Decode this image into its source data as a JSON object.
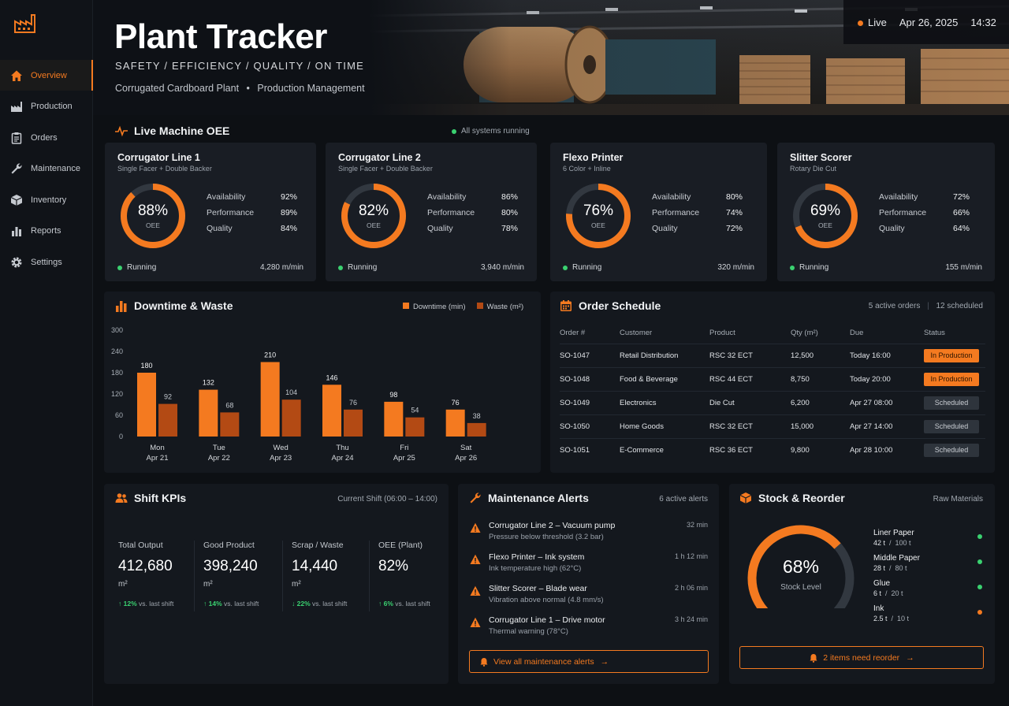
{
  "colors": {
    "accent": "#f47a20",
    "accent_dark": "#b34a14",
    "ok": "#3ad170",
    "warn": "#f47a20"
  },
  "sidebar": {
    "logo_icon": "factory-icon",
    "items": [
      {
        "label": "Overview",
        "icon": "home-icon",
        "active": true
      },
      {
        "label": "Production",
        "icon": "factory-icon"
      },
      {
        "label": "Orders",
        "icon": "clipboard-icon"
      },
      {
        "label": "Maintenance",
        "icon": "wrench-icon"
      },
      {
        "label": "Inventory",
        "icon": "box-icon"
      },
      {
        "label": "Reports",
        "icon": "bar-chart-icon"
      },
      {
        "label": "Settings",
        "icon": "gear-icon"
      }
    ]
  },
  "header": {
    "title": "Plant Tracker",
    "tags": "SAFETY / EFFICIENCY / QUALITY / ON TIME",
    "subtitle_a": "Corrugated Cardboard Plant",
    "subtitle_b": "Production Management",
    "status": "Live",
    "date": "Apr 26, 2025",
    "time": "14:32"
  },
  "oee": {
    "title": "Live Machine OEE",
    "status": "All systems running",
    "machines": [
      {
        "name": "Corrugator Line 1",
        "sub": "Single Facer + Double Backer",
        "oee": "88%",
        "oee_value": 88,
        "oee_label": "OEE",
        "availability": "92%",
        "performance": "89%",
        "quality": "84%",
        "state": "Running",
        "rate": "4,280 m/min"
      },
      {
        "name": "Corrugator Line 2",
        "sub": "Single Facer + Double Backer",
        "oee": "82%",
        "oee_value": 82,
        "oee_label": "OEE",
        "availability": "86%",
        "performance": "80%",
        "quality": "78%",
        "state": "Running",
        "rate": "3,940 m/min"
      },
      {
        "name": "Flexo Printer",
        "sub": "6 Color + Inline",
        "oee": "76%",
        "oee_value": 76,
        "oee_label": "OEE",
        "availability": "80%",
        "performance": "74%",
        "quality": "72%",
        "state": "Running",
        "rate": "320 m/min"
      },
      {
        "name": "Slitter Scorer",
        "sub": "Rotary Die Cut",
        "oee": "69%",
        "oee_value": 69,
        "oee_label": "OEE",
        "availability": "72%",
        "performance": "66%",
        "quality": "64%",
        "state": "Running",
        "rate": "155 m/min"
      }
    ],
    "labels": {
      "availability": "Availability",
      "performance": "Performance",
      "quality": "Quality"
    }
  },
  "downtime": {
    "title": "Downtime & Waste",
    "legend_a": "Downtime (min)",
    "legend_b": "Waste (m²)"
  },
  "chart_data": {
    "type": "bar",
    "title": "Downtime & Waste",
    "categories": [
      "Mon",
      "Tue",
      "Wed",
      "Thu",
      "Fri",
      "Sat"
    ],
    "dates": [
      "Apr 21",
      "Apr 22",
      "Apr 23",
      "Apr 24",
      "Apr 25",
      "Apr 26"
    ],
    "series": [
      {
        "name": "Downtime (min)",
        "values": [
          180,
          132,
          210,
          146,
          98,
          76
        ]
      },
      {
        "name": "Waste (m²)",
        "values": [
          92,
          68,
          104,
          76,
          54,
          38
        ]
      }
    ],
    "yticks": [
      0,
      60,
      120,
      180,
      240,
      300
    ],
    "ylim": [
      0,
      300
    ],
    "xlabel": "",
    "ylabel": "",
    "legend": "top-right",
    "grid": false
  },
  "orders": {
    "title": "Order Schedule",
    "active": "5 active orders",
    "scheduled": "12 scheduled",
    "columns": [
      "Order #",
      "Customer",
      "Product",
      "Qty (m²)",
      "Due",
      "Status"
    ],
    "rows": [
      {
        "id": "SO-1047",
        "customer": "Retail Distribution",
        "product": "RSC 32 ECT",
        "qty": "12,500",
        "due": "Today 16:00",
        "status": "In Production",
        "kind": "prod"
      },
      {
        "id": "SO-1048",
        "customer": "Food & Beverage",
        "product": "RSC 44 ECT",
        "qty": "8,750",
        "due": "Today 20:00",
        "status": "In Production",
        "kind": "prod"
      },
      {
        "id": "SO-1049",
        "customer": "Electronics",
        "product": "Die Cut",
        "qty": "6,200",
        "due": "Apr 27 08:00",
        "status": "Scheduled",
        "kind": "sched"
      },
      {
        "id": "SO-1050",
        "customer": "Home Goods",
        "product": "RSC 32 ECT",
        "qty": "15,000",
        "due": "Apr 27 14:00",
        "status": "Scheduled",
        "kind": "sched"
      },
      {
        "id": "SO-1051",
        "customer": "E-Commerce",
        "product": "RSC 36 ECT",
        "qty": "9,800",
        "due": "Apr 28 10:00",
        "status": "Scheduled",
        "kind": "sched"
      }
    ]
  },
  "shift": {
    "title": "Shift KPIs",
    "current": "Current Shift (06:00 – 14:00)",
    "kpis": [
      {
        "label": "Total Output",
        "value": "412,680",
        "unit": "m²",
        "delta": "↑ 12%",
        "delta_text": "vs. last shift"
      },
      {
        "label": "Good Product",
        "value": "398,240",
        "unit": "m²",
        "delta": "↑ 14%",
        "delta_text": "vs. last shift"
      },
      {
        "label": "Scrap / Waste",
        "value": "14,440",
        "unit": "m²",
        "delta": "↓ 22%",
        "delta_text": "vs. last shift"
      },
      {
        "label": "OEE (Plant)",
        "value": "82%",
        "unit": "",
        "delta": "↑ 6%",
        "delta_text": "vs. last shift"
      }
    ]
  },
  "maintenance": {
    "title": "Maintenance Alerts",
    "count": "6 active alerts",
    "alerts": [
      {
        "title": "Corrugator Line 2 – Vacuum pump",
        "desc": "Pressure below threshold (3.2 bar)",
        "time": "32 min"
      },
      {
        "title": "Flexo Printer – Ink system",
        "desc": "Ink temperature high (62°C)",
        "time": "1 h 12 min"
      },
      {
        "title": "Slitter Scorer – Blade wear",
        "desc": "Vibration above normal (4.8 mm/s)",
        "time": "2 h 06 min"
      },
      {
        "title": "Corrugator Line 1 – Drive motor",
        "desc": "Thermal warning (78°C)",
        "time": "3 h 24 min"
      }
    ],
    "button": "View all maintenance alerts"
  },
  "stock": {
    "title": "Stock & Reorder",
    "subtitle": "Raw Materials",
    "level": "68%",
    "level_value": 68,
    "level_label": "Stock Level",
    "items": [
      {
        "name": "Liner Paper",
        "qty": "42 t",
        "max": "100 t",
        "state": "ok"
      },
      {
        "name": "Middle Paper",
        "qty": "28 t",
        "max": "80 t",
        "state": "ok"
      },
      {
        "name": "Glue",
        "qty": "6 t",
        "max": "20 t",
        "state": "ok"
      },
      {
        "name": "Ink",
        "qty": "2.5 t",
        "max": "10 t",
        "state": "warn"
      }
    ],
    "button": "2 items need reorder"
  }
}
